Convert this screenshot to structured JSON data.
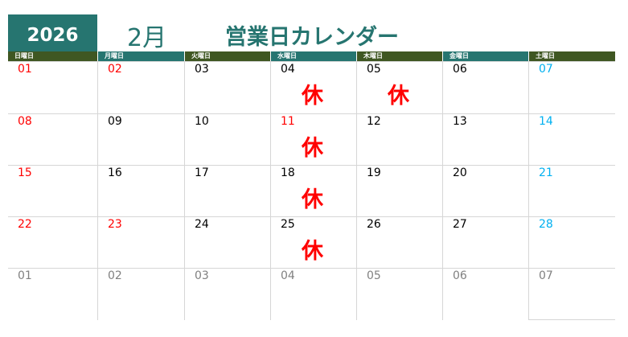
{
  "header": {
    "year": "2026",
    "month": "2月",
    "title": "営業日カレンダー"
  },
  "colors": {
    "teal": "#267570",
    "olive": "#3f5722",
    "holiday": "#ff0000",
    "saturday": "#00b0f0",
    "other_month": "#808080"
  },
  "weekdays": [
    "日曜日",
    "月曜日",
    "火曜日",
    "水曜日",
    "木曜日",
    "金曜日",
    "土曜日"
  ],
  "closed_label": "休",
  "weeks": [
    [
      {
        "d": "01",
        "t": "holiday"
      },
      {
        "d": "02",
        "t": "holiday"
      },
      {
        "d": "03"
      },
      {
        "d": "04",
        "closed": true
      },
      {
        "d": "05",
        "closed": true
      },
      {
        "d": "06"
      },
      {
        "d": "07",
        "t": "sat"
      }
    ],
    [
      {
        "d": "08",
        "t": "holiday"
      },
      {
        "d": "09"
      },
      {
        "d": "10"
      },
      {
        "d": "11",
        "t": "holiday",
        "closed": true
      },
      {
        "d": "12"
      },
      {
        "d": "13"
      },
      {
        "d": "14",
        "t": "sat"
      }
    ],
    [
      {
        "d": "15",
        "t": "holiday"
      },
      {
        "d": "16"
      },
      {
        "d": "17"
      },
      {
        "d": "18",
        "closed": true
      },
      {
        "d": "19"
      },
      {
        "d": "20"
      },
      {
        "d": "21",
        "t": "sat"
      }
    ],
    [
      {
        "d": "22",
        "t": "holiday"
      },
      {
        "d": "23",
        "t": "holiday"
      },
      {
        "d": "24"
      },
      {
        "d": "25",
        "closed": true
      },
      {
        "d": "26"
      },
      {
        "d": "27"
      },
      {
        "d": "28",
        "t": "sat"
      }
    ],
    [
      {
        "d": "01",
        "t": "other"
      },
      {
        "d": "02",
        "t": "other"
      },
      {
        "d": "03",
        "t": "other"
      },
      {
        "d": "04",
        "t": "other"
      },
      {
        "d": "05",
        "t": "other"
      },
      {
        "d": "06",
        "t": "other"
      },
      {
        "d": "07",
        "t": "other"
      }
    ]
  ]
}
